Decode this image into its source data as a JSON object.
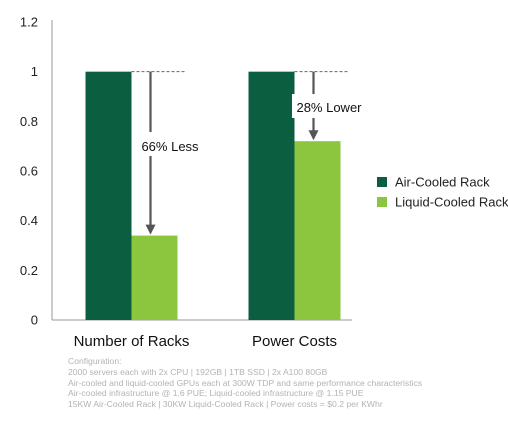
{
  "chart_data": {
    "type": "bar",
    "categories": [
      "Number of Racks",
      "Power Costs"
    ],
    "series": [
      {
        "name": "Air-Cooled Rack",
        "values": [
          1,
          1
        ],
        "color": "#0b5e3f"
      },
      {
        "name": "Liquid-Cooled Rack",
        "values": [
          0.34,
          0.72
        ],
        "color": "#8cc63f"
      }
    ],
    "ylim": [
      0,
      1.2
    ],
    "yticks": [
      "0",
      "0.2",
      "0.4",
      "0.6",
      "0.8",
      "1",
      "1.2"
    ],
    "grid": false,
    "legend_position": "right",
    "annotations": [
      "66% Less",
      "28% Lower"
    ],
    "title": "",
    "xlabel": "",
    "ylabel": ""
  },
  "footnote": {
    "heading": "Configuration:",
    "lines": [
      "2000 servers each with 2x CPU | 192GB | 1TB SSD | 2x A100 80GB",
      "Air-cooled and liquid-cooled GPUs each at 300W TDP and same performance characteristics",
      "Air-cooled infrastructure @ 1.6 PUE; Liquid-cooled infrastructure @ 1.15 PUE",
      "15KW Air-Cooled Rack | 30KW Liquid-Cooled Rack | Power costs = $0.2 per KWhr"
    ]
  }
}
